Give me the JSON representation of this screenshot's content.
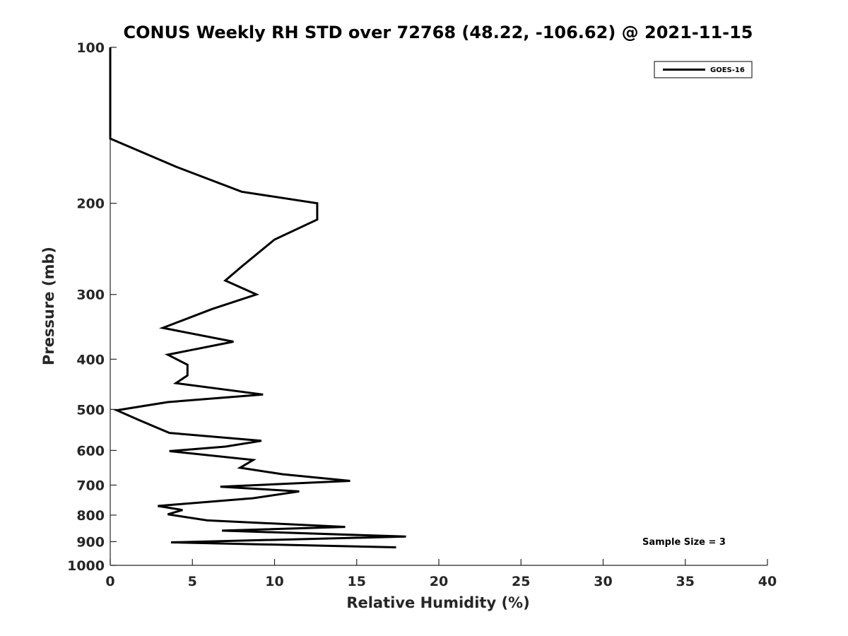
{
  "chart_data": {
    "type": "line",
    "title": "CONUS Weekly RH STD over 72768 (48.22, -106.62) @ 2021-11-15",
    "xlabel": "Relative Humidity (%)",
    "ylabel": "Pressure (mb)",
    "xlim": [
      0,
      40
    ],
    "ylim": [
      100,
      1000
    ],
    "y_scale": "log",
    "y_reversed": true,
    "grid": false,
    "xticks": [
      0,
      5,
      10,
      15,
      20,
      25,
      30,
      35,
      40
    ],
    "yticks": [
      100,
      200,
      300,
      400,
      500,
      600,
      700,
      800,
      900,
      1000
    ],
    "legend": {
      "placement": "top-right",
      "entries": [
        "GOES-16"
      ]
    },
    "annotation": "Sample Size = 3",
    "series": [
      {
        "name": "GOES-16",
        "color": "#000000",
        "points": [
          [
            0.0,
            100
          ],
          [
            0.0,
            150
          ],
          [
            4.0,
            170
          ],
          [
            8.0,
            190
          ],
          [
            12.6,
            200
          ],
          [
            12.6,
            215
          ],
          [
            10.0,
            235
          ],
          [
            8.0,
            265
          ],
          [
            7.0,
            282
          ],
          [
            8.9,
            300
          ],
          [
            6.2,
            320
          ],
          [
            3.2,
            348
          ],
          [
            7.5,
            370
          ],
          [
            3.5,
            392
          ],
          [
            4.7,
            410
          ],
          [
            4.7,
            430
          ],
          [
            4.0,
            445
          ],
          [
            9.3,
            468
          ],
          [
            3.5,
            484
          ],
          [
            0.4,
            502
          ],
          [
            1.8,
            525
          ],
          [
            3.6,
            555
          ],
          [
            9.2,
            575
          ],
          [
            7.0,
            590
          ],
          [
            3.6,
            602
          ],
          [
            8.7,
            626
          ],
          [
            7.9,
            648
          ],
          [
            10.5,
            667
          ],
          [
            14.6,
            687
          ],
          [
            6.7,
            705
          ],
          [
            11.5,
            720
          ],
          [
            8.7,
            742
          ],
          [
            2.9,
            768
          ],
          [
            4.4,
            782
          ],
          [
            3.5,
            797
          ],
          [
            5.9,
            819
          ],
          [
            14.3,
            843
          ],
          [
            6.8,
            857
          ],
          [
            18.0,
            880
          ],
          [
            3.7,
            903
          ],
          [
            17.4,
            923
          ]
        ]
      }
    ]
  }
}
